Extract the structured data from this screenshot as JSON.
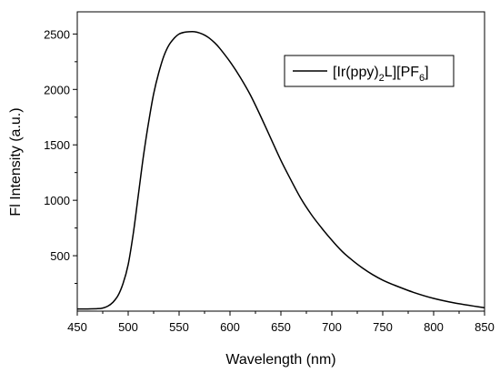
{
  "chart_data": {
    "type": "line",
    "xlabel": "Wavelength (nm)",
    "ylabel": "Fl Intensity (a.u.)",
    "xlim": [
      450,
      850
    ],
    "ylim": [
      0,
      2700
    ],
    "x_ticks": [
      "450",
      "500",
      "550",
      "600",
      "650",
      "700",
      "750",
      "800",
      "850"
    ],
    "y_ticks": [
      "500",
      "1000",
      "1500",
      "2000",
      "2500"
    ],
    "legend_position": "top-right",
    "legend": {
      "part1": "[Ir(ppy)",
      "sub1": "2",
      "part2": "L][PF",
      "sub2": "6",
      "part3": "]"
    },
    "line_color": "#000000",
    "series": [
      {
        "x": [
          450,
          460,
          470,
          475,
          480,
          485,
          490,
          495,
          500,
          505,
          510,
          515,
          520,
          525,
          530,
          535,
          540,
          545,
          550,
          555,
          560,
          565,
          570,
          575,
          580,
          585,
          590,
          600,
          610,
          620,
          630,
          640,
          650,
          660,
          670,
          680,
          690,
          700,
          710,
          720,
          730,
          740,
          750,
          760,
          780,
          800,
          820,
          850
        ],
        "y": [
          20,
          20,
          22,
          28,
          45,
          80,
          140,
          250,
          420,
          700,
          1050,
          1400,
          1700,
          1960,
          2150,
          2300,
          2400,
          2460,
          2500,
          2515,
          2520,
          2520,
          2510,
          2490,
          2460,
          2420,
          2370,
          2250,
          2110,
          1950,
          1760,
          1560,
          1360,
          1180,
          1010,
          870,
          750,
          640,
          540,
          460,
          390,
          330,
          280,
          240,
          170,
          115,
          75,
          30
        ]
      }
    ]
  }
}
